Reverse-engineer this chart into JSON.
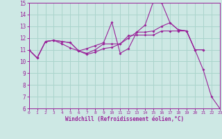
{
  "xlabel": "Windchill (Refroidissement éolien,°C)",
  "background_color": "#cde8e4",
  "grid_color": "#aad4cc",
  "line_color": "#992299",
  "xmin": 0,
  "xmax": 23,
  "ymin": 6,
  "ymax": 15,
  "s1x": [
    0,
    1,
    2,
    3,
    4,
    5,
    6,
    7,
    8,
    9,
    10,
    11,
    12,
    13,
    14,
    15,
    16,
    17,
    18,
    19,
    20,
    21
  ],
  "s1y": [
    11.0,
    10.3,
    11.7,
    11.8,
    11.7,
    11.6,
    10.9,
    10.6,
    10.8,
    11.1,
    11.2,
    11.5,
    12.2,
    12.25,
    12.25,
    12.25,
    12.6,
    12.6,
    12.6,
    12.6,
    11.0,
    11.0
  ],
  "s2x": [
    0,
    1,
    2,
    3,
    4,
    5,
    6,
    7,
    8,
    9,
    10,
    11,
    12,
    13,
    14,
    15,
    16,
    17,
    18,
    19,
    20,
    21,
    22,
    23
  ],
  "s2y": [
    11.0,
    10.3,
    11.7,
    11.8,
    11.7,
    11.6,
    10.9,
    11.1,
    11.35,
    11.6,
    13.35,
    10.7,
    11.1,
    12.5,
    13.1,
    15.1,
    15.0,
    13.3,
    12.7,
    12.6,
    11.0,
    9.3,
    7.0,
    6.0
  ],
  "s3x": [
    0,
    1,
    2,
    3,
    4,
    5,
    6,
    7,
    8,
    9,
    10,
    11,
    12,
    13,
    14,
    15,
    16,
    17,
    18,
    19,
    20,
    21
  ],
  "s3y": [
    11.0,
    10.3,
    11.7,
    11.8,
    11.5,
    11.15,
    10.9,
    10.7,
    11.0,
    11.5,
    11.5,
    11.5,
    12.0,
    12.5,
    12.5,
    12.6,
    13.0,
    13.3,
    12.7,
    12.6,
    11.0,
    11.0
  ]
}
